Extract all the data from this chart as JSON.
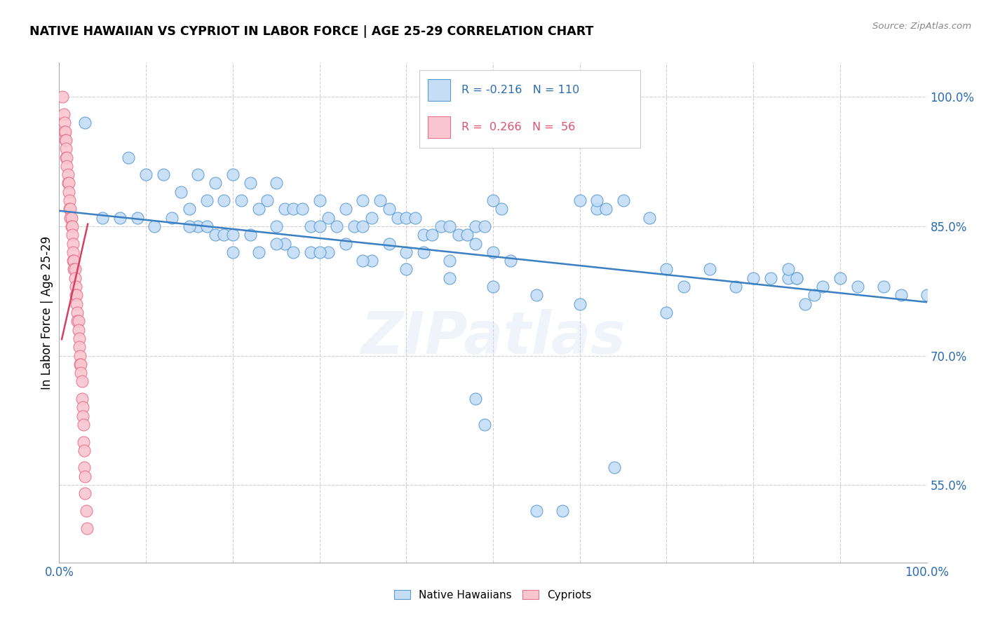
{
  "title": "NATIVE HAWAIIAN VS CYPRIOT IN LABOR FORCE | AGE 25-29 CORRELATION CHART",
  "source": "Source: ZipAtlas.com",
  "ylabel": "In Labor Force | Age 25-29",
  "xlim": [
    0.0,
    1.0
  ],
  "ylim": [
    0.46,
    1.04
  ],
  "x_tick_positions": [
    0.0,
    0.1,
    0.2,
    0.3,
    0.4,
    0.5,
    0.6,
    0.7,
    0.8,
    0.9,
    1.0
  ],
  "x_tick_labels": [
    "0.0%",
    "",
    "",
    "",
    "",
    "",
    "",
    "",
    "",
    "",
    "100.0%"
  ],
  "y_ticks_right": [
    0.55,
    0.7,
    0.85,
    1.0
  ],
  "y_tick_labels_right": [
    "55.0%",
    "70.0%",
    "85.0%",
    "100.0%"
  ],
  "blue_color": "#c5ddf5",
  "blue_edge_color": "#5b9bd5",
  "pink_color": "#f9c6d0",
  "pink_edge_color": "#e8738a",
  "blue_line_color": "#3a7fc1",
  "pink_line_color": "#d44060",
  "watermark": "ZIPatlas",
  "blue_R": -0.216,
  "pink_R": 0.266,
  "blue_x": [
    0.03,
    0.08,
    0.1,
    0.12,
    0.14,
    0.15,
    0.16,
    0.17,
    0.18,
    0.19,
    0.2,
    0.21,
    0.22,
    0.23,
    0.24,
    0.25,
    0.26,
    0.27,
    0.28,
    0.29,
    0.3,
    0.31,
    0.32,
    0.33,
    0.34,
    0.35,
    0.36,
    0.37,
    0.38,
    0.39,
    0.4,
    0.41,
    0.42,
    0.43,
    0.44,
    0.45,
    0.46,
    0.47,
    0.48,
    0.49,
    0.5,
    0.51,
    0.13,
    0.16,
    0.17,
    0.18,
    0.19,
    0.2,
    0.22,
    0.23,
    0.25,
    0.26,
    0.27,
    0.29,
    0.3,
    0.31,
    0.33,
    0.35,
    0.36,
    0.38,
    0.4,
    0.42,
    0.45,
    0.48,
    0.5,
    0.52,
    0.55,
    0.58,
    0.6,
    0.62,
    0.65,
    0.68,
    0.7,
    0.72,
    0.75,
    0.78,
    0.8,
    0.82,
    0.85,
    0.88,
    0.9,
    0.92,
    0.95,
    0.97,
    1.0,
    0.05,
    0.07,
    0.09,
    0.11,
    0.15,
    0.2,
    0.25,
    0.3,
    0.35,
    0.4,
    0.45,
    0.5,
    0.55,
    0.6,
    0.7,
    0.48,
    0.49,
    0.62,
    0.63,
    0.64,
    0.84,
    0.84,
    0.85,
    0.86,
    0.87
  ],
  "blue_y": [
    0.97,
    0.93,
    0.91,
    0.91,
    0.89,
    0.87,
    0.91,
    0.88,
    0.9,
    0.88,
    0.91,
    0.88,
    0.9,
    0.87,
    0.88,
    0.9,
    0.87,
    0.87,
    0.87,
    0.85,
    0.88,
    0.86,
    0.85,
    0.87,
    0.85,
    0.88,
    0.86,
    0.88,
    0.87,
    0.86,
    0.86,
    0.86,
    0.84,
    0.84,
    0.85,
    0.85,
    0.84,
    0.84,
    0.85,
    0.85,
    0.88,
    0.87,
    0.86,
    0.85,
    0.85,
    0.84,
    0.84,
    0.82,
    0.84,
    0.82,
    0.85,
    0.83,
    0.82,
    0.82,
    0.85,
    0.82,
    0.83,
    0.85,
    0.81,
    0.83,
    0.82,
    0.82,
    0.81,
    0.83,
    0.82,
    0.81,
    0.52,
    0.52,
    0.88,
    0.87,
    0.88,
    0.86,
    0.8,
    0.78,
    0.8,
    0.78,
    0.79,
    0.79,
    0.79,
    0.78,
    0.79,
    0.78,
    0.78,
    0.77,
    0.77,
    0.86,
    0.86,
    0.86,
    0.85,
    0.85,
    0.84,
    0.83,
    0.82,
    0.81,
    0.8,
    0.79,
    0.78,
    0.77,
    0.76,
    0.75,
    0.65,
    0.62,
    0.88,
    0.87,
    0.57,
    0.79,
    0.8,
    0.79,
    0.76,
    0.77
  ],
  "pink_x": [
    0.004,
    0.005,
    0.006,
    0.006,
    0.007,
    0.007,
    0.008,
    0.008,
    0.008,
    0.009,
    0.009,
    0.01,
    0.01,
    0.011,
    0.011,
    0.012,
    0.012,
    0.013,
    0.013,
    0.014,
    0.014,
    0.015,
    0.015,
    0.016,
    0.016,
    0.016,
    0.017,
    0.017,
    0.018,
    0.018,
    0.019,
    0.019,
    0.02,
    0.02,
    0.021,
    0.021,
    0.022,
    0.022,
    0.023,
    0.023,
    0.024,
    0.024,
    0.025,
    0.025,
    0.026,
    0.026,
    0.027,
    0.027,
    0.028,
    0.028,
    0.029,
    0.029,
    0.03,
    0.03,
    0.031,
    0.032
  ],
  "pink_y": [
    1.0,
    0.98,
    0.97,
    0.96,
    0.96,
    0.95,
    0.95,
    0.94,
    0.93,
    0.93,
    0.92,
    0.91,
    0.9,
    0.9,
    0.89,
    0.88,
    0.87,
    0.87,
    0.86,
    0.86,
    0.85,
    0.85,
    0.84,
    0.83,
    0.82,
    0.81,
    0.81,
    0.8,
    0.8,
    0.79,
    0.78,
    0.77,
    0.77,
    0.76,
    0.75,
    0.74,
    0.74,
    0.73,
    0.72,
    0.71,
    0.7,
    0.69,
    0.69,
    0.68,
    0.67,
    0.65,
    0.64,
    0.63,
    0.62,
    0.6,
    0.59,
    0.57,
    0.56,
    0.54,
    0.52,
    0.5
  ],
  "blue_line_x": [
    0.0,
    1.0
  ],
  "blue_line_y": [
    0.868,
    0.762
  ],
  "pink_line_x_start": 0.003,
  "pink_line_x_end": 0.033
}
